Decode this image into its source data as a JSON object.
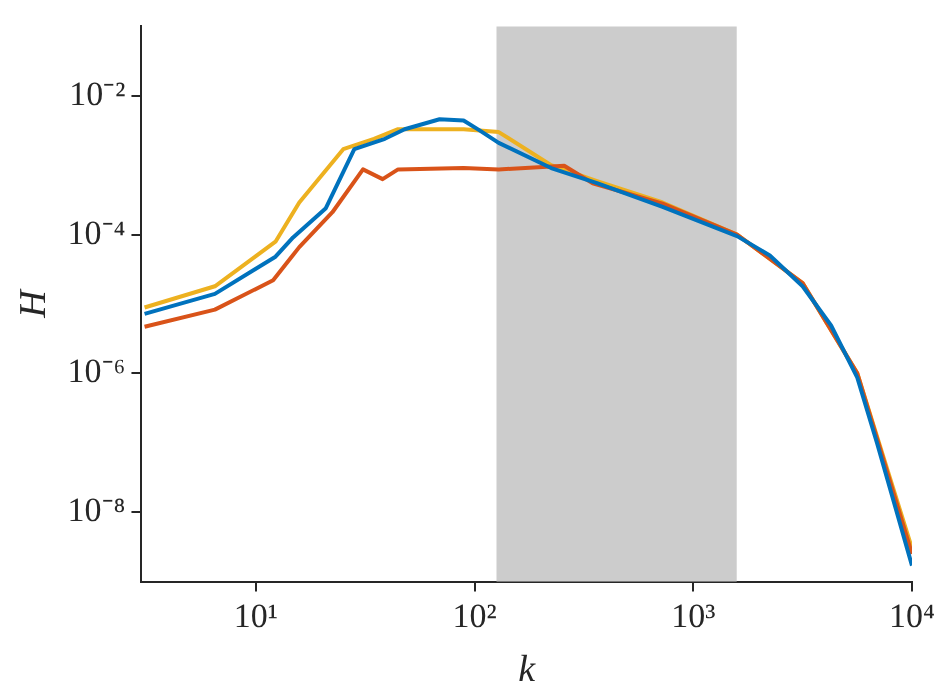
{
  "chart_data": {
    "type": "line",
    "xlabel": "k",
    "ylabel": "H",
    "log": "xy",
    "grid": false,
    "legend": false,
    "xlim": [
      3,
      10000
    ],
    "ylim": [
      1e-09,
      0.1
    ],
    "xticks": [
      {
        "value": 10,
        "label": "10¹"
      },
      {
        "value": 100,
        "label": "10²"
      },
      {
        "value": 1000,
        "label": "10³"
      },
      {
        "value": 10000,
        "label": "10⁴"
      }
    ],
    "yticks": [
      {
        "value": 1e-08,
        "label": "10⁻⁸"
      },
      {
        "value": 1e-06,
        "label": "10⁻⁶"
      },
      {
        "value": 0.0001,
        "label": "10⁻⁴"
      },
      {
        "value": 0.01,
        "label": "10⁻²"
      }
    ],
    "bands": [
      {
        "axis": "x",
        "from": 126,
        "to": 1580,
        "color": "#cccccc"
      }
    ],
    "series": [
      {
        "color": "#0072bd",
        "x": [
          3.1,
          6.5,
          12.3,
          14.8,
          20.9,
          28.2,
          38.9,
          47.9,
          69.2,
          89.1,
          105,
          129,
          224,
          363,
          724,
          1585,
          2239,
          3162,
          4266,
          5623,
          6918,
          10000
        ],
        "values": [
          7.2e-06,
          1.4e-05,
          4.8e-05,
          9.1e-05,
          0.00024,
          0.0017,
          0.0024,
          0.0033,
          0.0046,
          0.0044,
          0.0032,
          0.0021,
          0.00091,
          0.00055,
          0.00025,
          9.5e-05,
          5e-05,
          1.8e-05,
          4.9e-06,
          8.7e-07,
          1e-07,
          1.7e-09
        ]
      },
      {
        "color": "#d95319",
        "x": [
          3.1,
          6.5,
          12,
          15.8,
          22.4,
          30.9,
          38,
          44.7,
          89.1,
          129,
          257,
          347,
          724,
          1585,
          3162,
          5623,
          10000
        ],
        "values": [
          4.7e-06,
          8.3e-06,
          2.2e-05,
          6.6e-05,
          0.00021,
          0.00087,
          0.00063,
          0.00087,
          0.00091,
          0.00087,
          0.00098,
          0.00055,
          0.00028,
          0.0001,
          2e-05,
          1e-06,
          2.5e-09
        ]
      },
      {
        "color": "#edb120",
        "x": [
          3.1,
          6.5,
          12.3,
          15.8,
          25.1,
          34.7,
          44.7,
          89.1,
          129,
          224,
          363,
          724,
          1585,
          3162,
          5623,
          10000
        ],
        "values": [
          8.9e-06,
          1.8e-05,
          7.9e-05,
          0.00029,
          0.0017,
          0.0024,
          0.0033,
          0.0033,
          0.003,
          0.001,
          0.00059,
          0.00029,
          0.0001,
          2e-05,
          1e-06,
          3e-09
        ]
      }
    ]
  }
}
